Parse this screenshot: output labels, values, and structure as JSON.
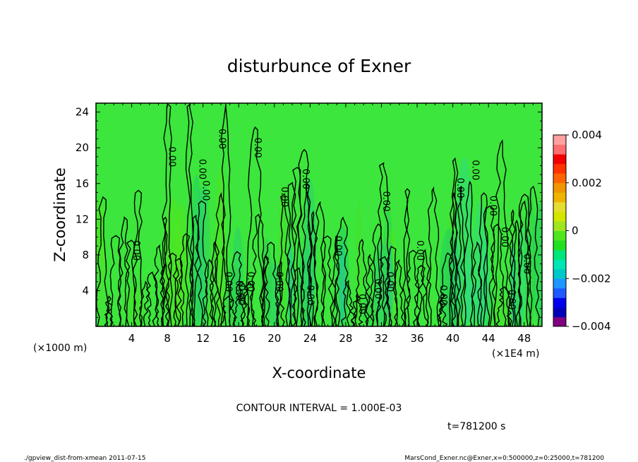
{
  "chart_data": {
    "type": "heatmap",
    "title": "disturbunce of Exner",
    "xlabel": "X-coordinate",
    "ylabel": "Z-coordinate",
    "x_unit_left": "(×1000 m)",
    "x_unit_right": "(×1E4 m)",
    "xlim": [
      0,
      50
    ],
    "ylim": [
      0,
      25
    ],
    "x_ticks": [
      4,
      8,
      12,
      16,
      20,
      24,
      28,
      32,
      36,
      40,
      44,
      48
    ],
    "y_ticks": [
      4,
      8,
      12,
      16,
      20,
      24
    ],
    "x_tick_labels": [
      "4",
      "8",
      "12",
      "16",
      "20",
      "24",
      "28",
      "32",
      "36",
      "40",
      "44",
      "48"
    ],
    "y_tick_labels": [
      "4",
      "8",
      "12",
      "16",
      "20",
      "24"
    ],
    "colorbar": {
      "range": [
        -0.004,
        0.004
      ],
      "tick_values": [
        0.004,
        0.002,
        0,
        -0.002,
        -0.004
      ],
      "tick_labels": [
        "0.004",
        "0.002",
        "0",
        "−0.002",
        "−0.004"
      ],
      "colors": [
        "#7f007f",
        "#0000bb",
        "#0000ee",
        "#1e5aff",
        "#1e96ff",
        "#00c8c8",
        "#00e6b4",
        "#00e678",
        "#20e020",
        "#50e61e",
        "#a0e61e",
        "#d2e600",
        "#e6dc32",
        "#f0b400",
        "#f09600",
        "#ff6400",
        "#ff3200",
        "#f00000",
        "#ff6e6e",
        "#ffa0a0"
      ]
    },
    "background_color": "#3ce63c",
    "contour_line_label": "0.00",
    "contour_interval_text": "CONTOUR INTERVAL = 1.000E-03",
    "time_text": "t=781200 s",
    "contour_labels": [
      {
        "x": 4.2,
        "y": 8.5,
        "v": "0.00"
      },
      {
        "x": 8.2,
        "y": 19.0,
        "v": "0.00"
      },
      {
        "x": 11.6,
        "y": 17.6,
        "v": "0.00"
      },
      {
        "x": 12.0,
        "y": 15.2,
        "v": "0.00"
      },
      {
        "x": 13.8,
        "y": 21.0,
        "v": "0.00"
      },
      {
        "x": 14.5,
        "y": 5.0,
        "v": "0.00"
      },
      {
        "x": 15.7,
        "y": 4.0,
        "v": "0.00"
      },
      {
        "x": 17.0,
        "y": 5.0,
        "v": "0.00"
      },
      {
        "x": 16.0,
        "y": 3.5,
        "v": "0.00"
      },
      {
        "x": 17.8,
        "y": 20.0,
        "v": "0.00"
      },
      {
        "x": 20.2,
        "y": 5.0,
        "v": "0.00"
      },
      {
        "x": 20.8,
        "y": 14.5,
        "v": "0.00"
      },
      {
        "x": 23.2,
        "y": 16.5,
        "v": "0.00"
      },
      {
        "x": 23.7,
        "y": 3.5,
        "v": "0.00"
      },
      {
        "x": 26.8,
        "y": 9.0,
        "v": "0.00"
      },
      {
        "x": 29.5,
        "y": 2.5,
        "v": "0.00"
      },
      {
        "x": 31.3,
        "y": 4.2,
        "v": "0.00"
      },
      {
        "x": 32.6,
        "y": 5.0,
        "v": "0.00"
      },
      {
        "x": 32.2,
        "y": 14.0,
        "v": "0.00"
      },
      {
        "x": 36.0,
        "y": 8.5,
        "v": "0.00"
      },
      {
        "x": 38.6,
        "y": 3.5,
        "v": "0.00"
      },
      {
        "x": 40.5,
        "y": 15.5,
        "v": "0.00"
      },
      {
        "x": 42.2,
        "y": 17.5,
        "v": "0.00"
      },
      {
        "x": 44.2,
        "y": 13.5,
        "v": "0.00"
      },
      {
        "x": 45.5,
        "y": 10.0,
        "v": "0.00"
      },
      {
        "x": 46.3,
        "y": 3.0,
        "v": "0.00"
      },
      {
        "x": 48.0,
        "y": 7.0,
        "v": "0.00"
      }
    ],
    "grid": false,
    "legend": "colorbar-right"
  },
  "footer": {
    "left": "./gpview_dist-from-xmean  2011-07-15",
    "right": "MarsCond_Exner.nc@Exner,x=0:500000,z=0:25000,t=781200"
  }
}
